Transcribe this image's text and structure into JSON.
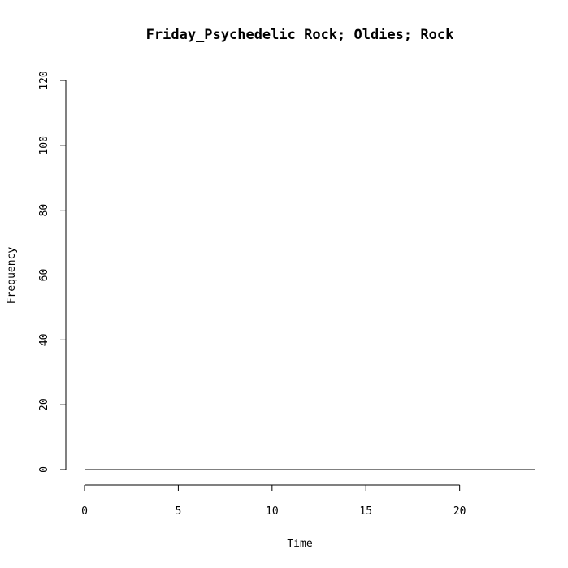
{
  "chart_data": {
    "type": "line",
    "title": "Friday_Psychedelic Rock; Oldies; Rock",
    "xlabel": "Time",
    "ylabel": "Frequency",
    "xlim": [
      0,
      24
    ],
    "ylim": [
      0,
      120
    ],
    "x_ticks": [
      0,
      5,
      10,
      15,
      20
    ],
    "y_ticks": [
      0,
      20,
      40,
      60,
      80,
      100,
      120
    ],
    "grid": false,
    "series": [
      {
        "x": [
          0,
          1,
          2,
          3,
          4,
          5,
          6,
          7,
          8,
          9,
          10,
          11,
          12,
          13,
          14,
          15,
          16,
          17,
          18,
          19,
          20,
          21,
          22,
          23,
          24
        ],
        "values": [
          0,
          0,
          0,
          0,
          0,
          0,
          0,
          0,
          0,
          0,
          0,
          0,
          0,
          0,
          0,
          0,
          0,
          0,
          0,
          0,
          0,
          0,
          0,
          0,
          0
        ]
      }
    ]
  }
}
